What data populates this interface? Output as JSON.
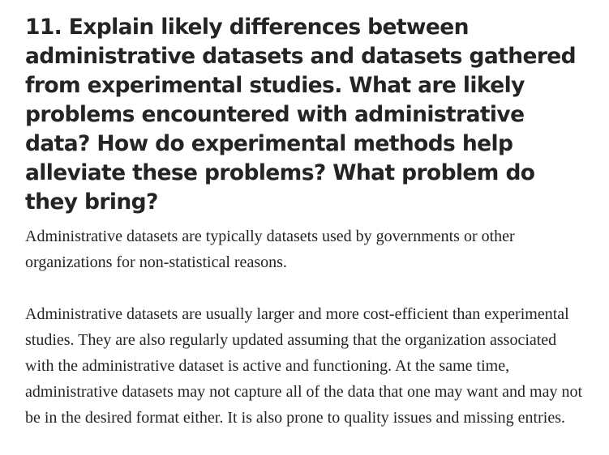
{
  "article": {
    "heading": "11. Explain likely differences between administrative datasets and datasets gathered from experimental studies. What are likely problems encountered with administrative data? How do experimental methods help alleviate these problems? What problem do they bring?",
    "paragraphs": [
      "Administrative datasets are typically datasets used by governments or other organizations for non-statistical reasons.",
      "Administrative datasets are usually larger and more cost-efficient than experimental studies. They are also regularly updated assuming that the organization associated with the administrative dataset is active and functioning. At the same time, administrative datasets may not capture all of the data that one may want and may not be in the desired format either. It is also prone to quality issues and missing entries."
    ]
  }
}
